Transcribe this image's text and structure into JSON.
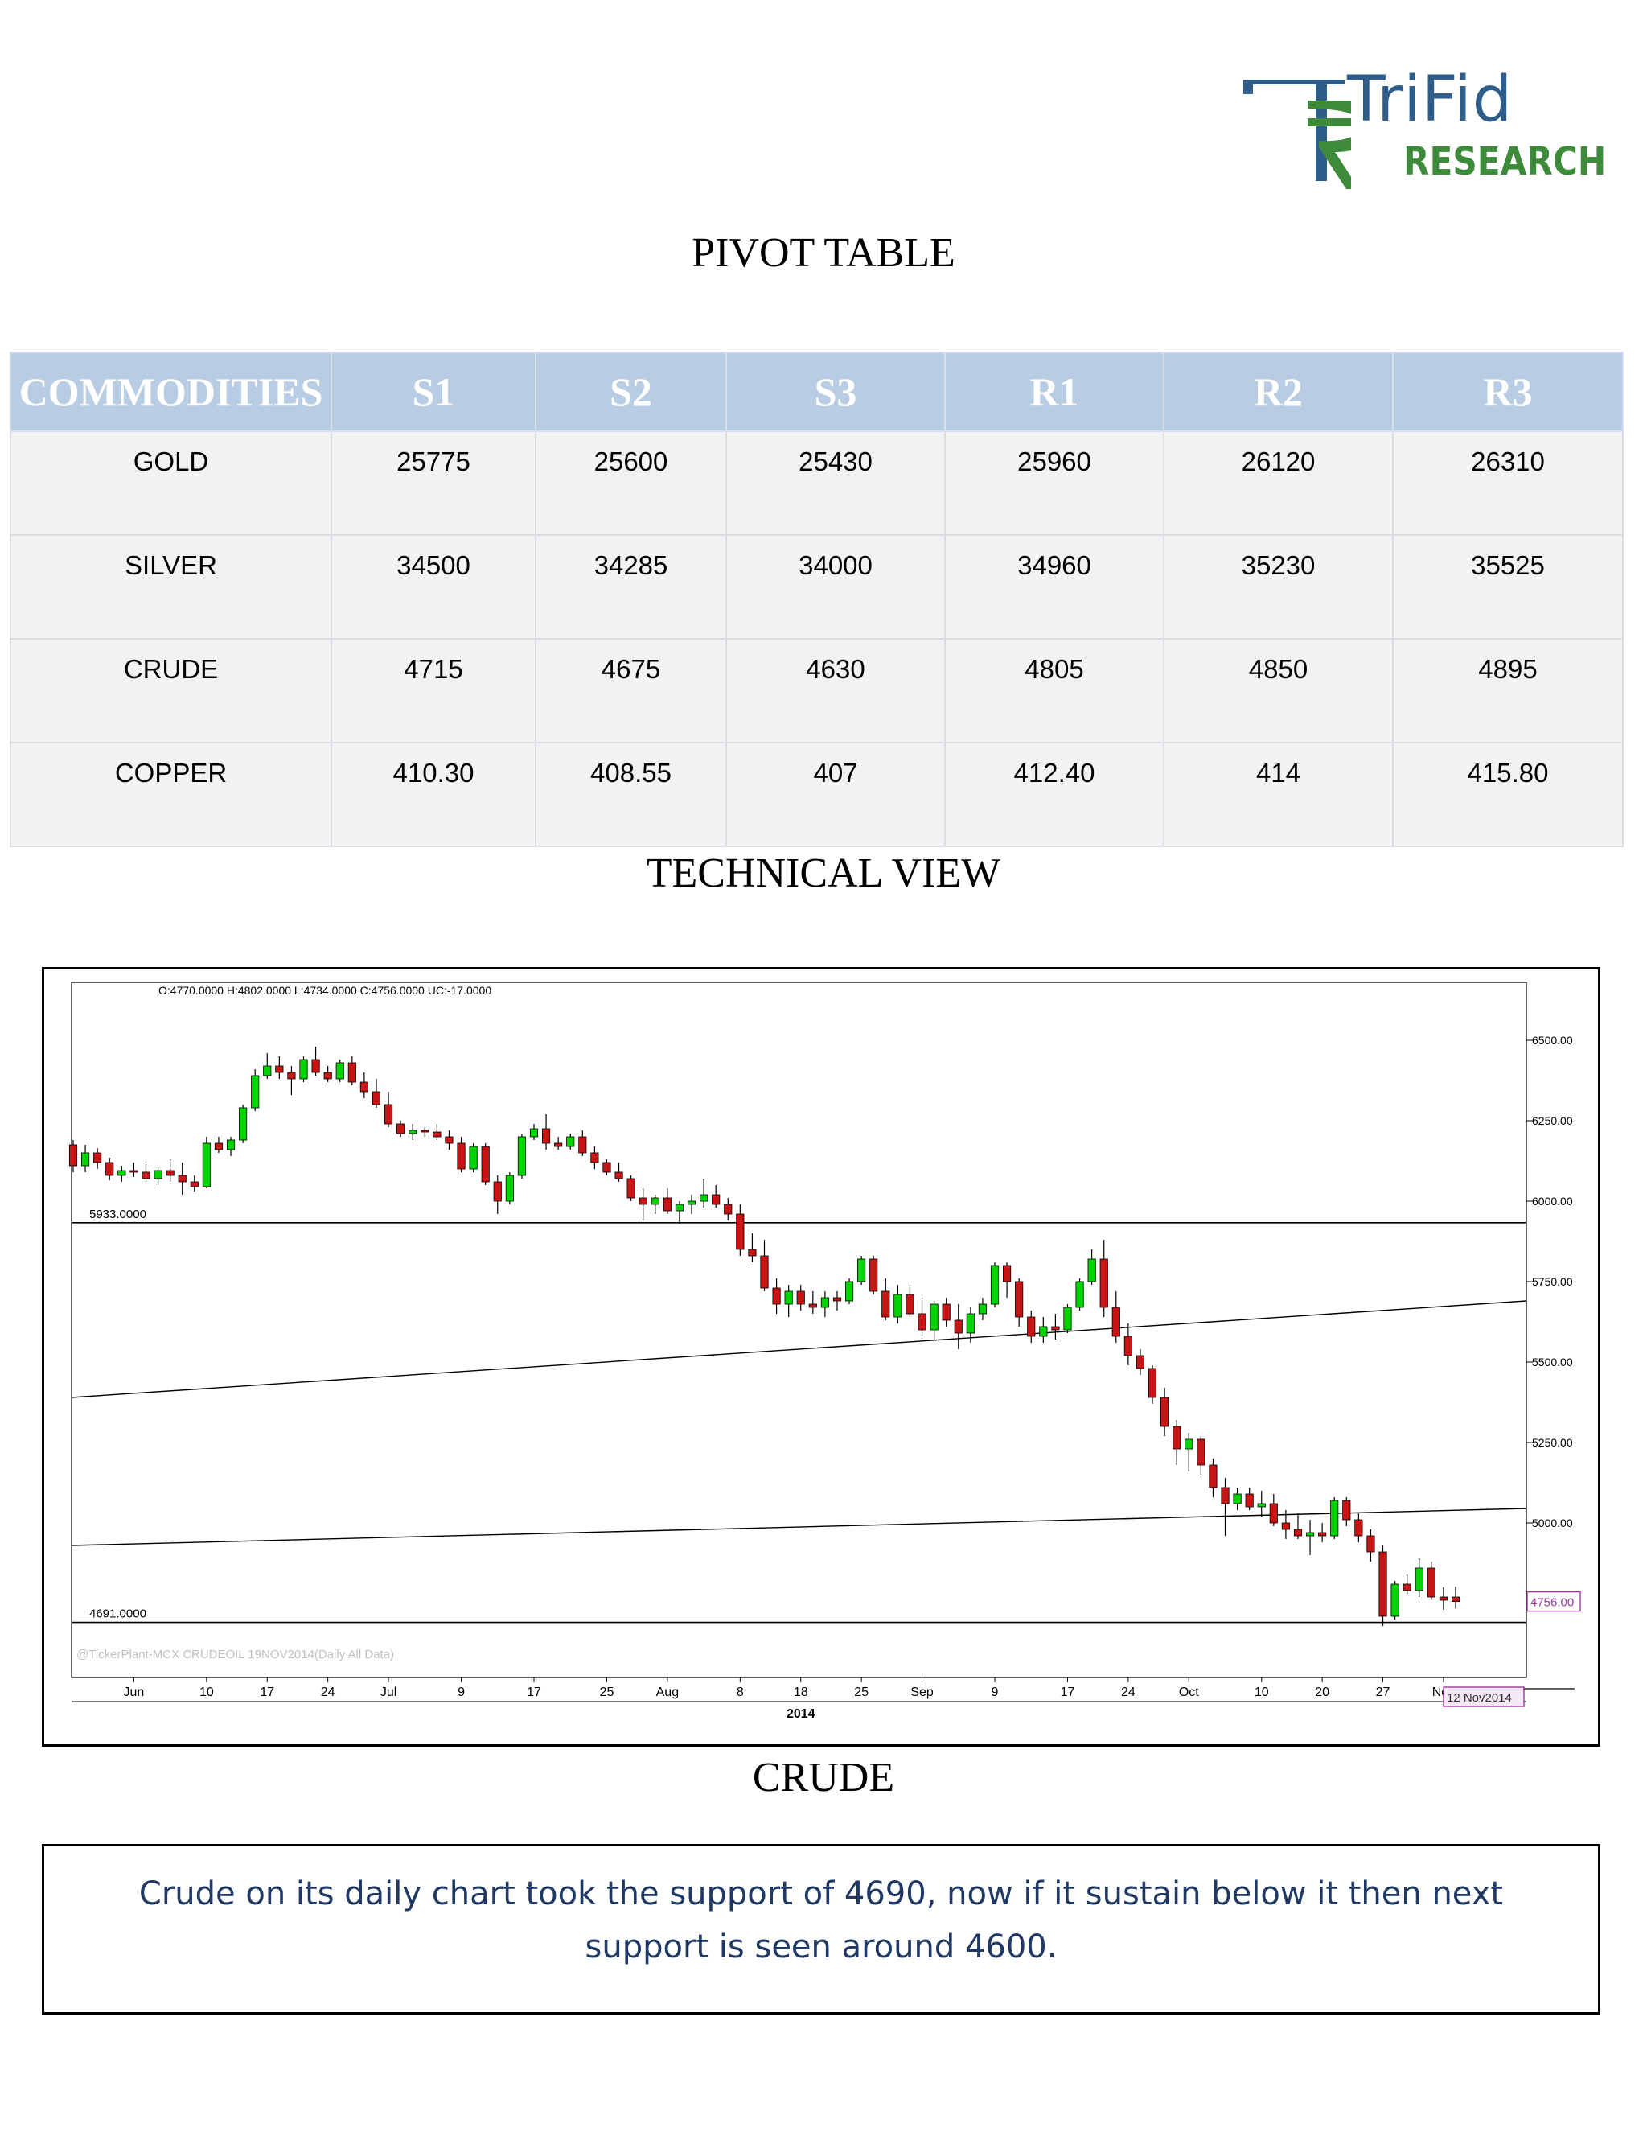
{
  "logo": {
    "name": "TriFid",
    "tagline": "RESEARCH",
    "colors": {
      "blue": "#2f5d8a",
      "green": "#3c8a3a"
    }
  },
  "pivot_title": "PIVOT TABLE",
  "pivot_table": {
    "headers": [
      "COMMODITIES",
      "S1",
      "S2",
      "S3",
      "R1",
      "R2",
      "R3"
    ],
    "rows": [
      [
        "GOLD",
        "25775",
        "25600",
        "25430",
        "25960",
        "26120",
        "26310"
      ],
      [
        "SILVER",
        "34500",
        "34285",
        "34000",
        "34960",
        "35230",
        "35525"
      ],
      [
        "CRUDE",
        "4715",
        "4675",
        "4630",
        "4805",
        "4850",
        "4895"
      ],
      [
        "COPPER",
        "410.30",
        "408.55",
        "407",
        "412.40",
        "414",
        "415.80"
      ]
    ]
  },
  "technical_title": "TECHNICAL VIEW",
  "chart_data": {
    "type": "candlestick",
    "ohlc_readout": "O:4770.0000  H:4802.0000  L:4734.0000  C:4756.0000  UC:-17.0000",
    "watermark": "@TickerPlant-MCX CRUDEOIL 19NOV2014(Daily All Data)",
    "y_ticks": [
      "6500.00",
      "6250.00",
      "6000.00",
      "5750.00",
      "5500.00",
      "5250.00",
      "5000.00",
      "4750.00"
    ],
    "y_tick_values": [
      6500,
      6250,
      6000,
      5750,
      5500,
      5250,
      5000,
      4750
    ],
    "ylim": [
      4520,
      6680
    ],
    "x_ticks": [
      "Jun",
      "10",
      "17",
      "24",
      "Jul",
      "9",
      "17",
      "25",
      "Aug",
      "8",
      "18",
      "25",
      "Sep",
      "9",
      "17",
      "24",
      "Oct",
      "10",
      "20",
      "27",
      "Nov"
    ],
    "x_tick_index": [
      5,
      11,
      16,
      21,
      26,
      32,
      38,
      44,
      49,
      55,
      60,
      65,
      70,
      76,
      82,
      87,
      92,
      98,
      103,
      108,
      113
    ],
    "year_label": "2014",
    "year_index": 60,
    "date_badge": "12 Nov2014",
    "last_price_badge": "4756.00",
    "last_price": 4756,
    "support_levels": [
      {
        "label": "5933.0000",
        "value": 5933
      },
      {
        "label": "4691.0000",
        "value": 4691
      }
    ],
    "trendlines": [
      {
        "from": [
          0,
          5390
        ],
        "to": [
          128,
          5690
        ]
      },
      {
        "from": [
          0,
          4930
        ],
        "to": [
          128,
          5045
        ]
      }
    ],
    "colors": {
      "up": "#00d400",
      "down": "#c81414",
      "wick": "#000000",
      "badge": "#9c3a9c"
    },
    "candles": [
      [
        6175,
        6190,
        6090,
        6110
      ],
      [
        6110,
        6175,
        6090,
        6150
      ],
      [
        6150,
        6165,
        6100,
        6120
      ],
      [
        6120,
        6135,
        6065,
        6080
      ],
      [
        6080,
        6110,
        6060,
        6095
      ],
      [
        6095,
        6120,
        6075,
        6090
      ],
      [
        6090,
        6115,
        6060,
        6070
      ],
      [
        6070,
        6105,
        6050,
        6095
      ],
      [
        6095,
        6130,
        6060,
        6080
      ],
      [
        6080,
        6120,
        6020,
        6060
      ],
      [
        6060,
        6080,
        6030,
        6045
      ],
      [
        6045,
        6200,
        6040,
        6180
      ],
      [
        6180,
        6200,
        6150,
        6160
      ],
      [
        6160,
        6200,
        6140,
        6190
      ],
      [
        6190,
        6300,
        6180,
        6290
      ],
      [
        6290,
        6410,
        6280,
        6390
      ],
      [
        6390,
        6460,
        6380,
        6420
      ],
      [
        6420,
        6450,
        6380,
        6400
      ],
      [
        6400,
        6420,
        6330,
        6380
      ],
      [
        6380,
        6450,
        6370,
        6440
      ],
      [
        6440,
        6480,
        6390,
        6400
      ],
      [
        6400,
        6420,
        6370,
        6380
      ],
      [
        6380,
        6440,
        6370,
        6430
      ],
      [
        6430,
        6450,
        6360,
        6370
      ],
      [
        6370,
        6400,
        6320,
        6340
      ],
      [
        6340,
        6380,
        6290,
        6300
      ],
      [
        6300,
        6340,
        6230,
        6240
      ],
      [
        6240,
        6250,
        6200,
        6210
      ],
      [
        6210,
        6240,
        6190,
        6220
      ],
      [
        6220,
        6230,
        6200,
        6215
      ],
      [
        6215,
        6240,
        6190,
        6200
      ],
      [
        6200,
        6220,
        6160,
        6180
      ],
      [
        6180,
        6200,
        6090,
        6100
      ],
      [
        6100,
        6180,
        6090,
        6170
      ],
      [
        6170,
        6180,
        6050,
        6060
      ],
      [
        6060,
        6080,
        5960,
        6000
      ],
      [
        6000,
        6090,
        5990,
        6080
      ],
      [
        6080,
        6210,
        6070,
        6200
      ],
      [
        6200,
        6240,
        6190,
        6225
      ],
      [
        6225,
        6270,
        6160,
        6180
      ],
      [
        6180,
        6200,
        6160,
        6170
      ],
      [
        6170,
        6210,
        6160,
        6200
      ],
      [
        6200,
        6220,
        6140,
        6150
      ],
      [
        6150,
        6170,
        6100,
        6120
      ],
      [
        6120,
        6130,
        6080,
        6090
      ],
      [
        6090,
        6120,
        6060,
        6070
      ],
      [
        6070,
        6080,
        6000,
        6010
      ],
      [
        6010,
        6040,
        5940,
        5990
      ],
      [
        5990,
        6020,
        5960,
        6010
      ],
      [
        6010,
        6040,
        5960,
        5970
      ],
      [
        5970,
        6000,
        5930,
        5990
      ],
      [
        5990,
        6020,
        5960,
        6000
      ],
      [
        6000,
        6070,
        5980,
        6020
      ],
      [
        6020,
        6050,
        5980,
        5990
      ],
      [
        5990,
        6010,
        5940,
        5960
      ],
      [
        5960,
        5990,
        5830,
        5850
      ],
      [
        5850,
        5900,
        5810,
        5830
      ],
      [
        5830,
        5880,
        5720,
        5730
      ],
      [
        5730,
        5760,
        5650,
        5680
      ],
      [
        5680,
        5740,
        5640,
        5720
      ],
      [
        5720,
        5740,
        5660,
        5680
      ],
      [
        5680,
        5720,
        5650,
        5670
      ],
      [
        5670,
        5720,
        5640,
        5700
      ],
      [
        5700,
        5720,
        5660,
        5690
      ],
      [
        5690,
        5760,
        5680,
        5750
      ],
      [
        5750,
        5830,
        5740,
        5820
      ],
      [
        5820,
        5830,
        5710,
        5720
      ],
      [
        5720,
        5760,
        5630,
        5640
      ],
      [
        5640,
        5740,
        5620,
        5710
      ],
      [
        5710,
        5740,
        5640,
        5650
      ],
      [
        5650,
        5700,
        5580,
        5600
      ],
      [
        5600,
        5690,
        5570,
        5680
      ],
      [
        5680,
        5700,
        5610,
        5630
      ],
      [
        5630,
        5680,
        5540,
        5590
      ],
      [
        5590,
        5670,
        5560,
        5650
      ],
      [
        5650,
        5700,
        5630,
        5680
      ],
      [
        5680,
        5810,
        5670,
        5800
      ],
      [
        5800,
        5810,
        5700,
        5750
      ],
      [
        5750,
        5760,
        5610,
        5640
      ],
      [
        5640,
        5660,
        5560,
        5580
      ],
      [
        5580,
        5640,
        5560,
        5610
      ],
      [
        5610,
        5650,
        5570,
        5600
      ],
      [
        5600,
        5680,
        5590,
        5670
      ],
      [
        5670,
        5760,
        5660,
        5750
      ],
      [
        5750,
        5850,
        5740,
        5820
      ],
      [
        5820,
        5880,
        5640,
        5670
      ],
      [
        5670,
        5720,
        5560,
        5580
      ],
      [
        5580,
        5620,
        5490,
        5520
      ],
      [
        5520,
        5540,
        5460,
        5480
      ],
      [
        5480,
        5490,
        5370,
        5390
      ],
      [
        5390,
        5420,
        5270,
        5300
      ],
      [
        5300,
        5320,
        5180,
        5230
      ],
      [
        5230,
        5280,
        5160,
        5260
      ],
      [
        5260,
        5270,
        5150,
        5180
      ],
      [
        5180,
        5200,
        5080,
        5110
      ],
      [
        5110,
        5140,
        4960,
        5060
      ],
      [
        5060,
        5110,
        5040,
        5090
      ],
      [
        5090,
        5110,
        5040,
        5050
      ],
      [
        5050,
        5100,
        5020,
        5060
      ],
      [
        5060,
        5090,
        4990,
        5000
      ],
      [
        5000,
        5040,
        4950,
        4980
      ],
      [
        4980,
        5030,
        4950,
        4960
      ],
      [
        4960,
        5010,
        4900,
        4970
      ],
      [
        4970,
        5000,
        4940,
        4960
      ],
      [
        4960,
        5080,
        4950,
        5070
      ],
      [
        5070,
        5080,
        4990,
        5010
      ],
      [
        5010,
        5030,
        4940,
        4960
      ],
      [
        4960,
        4980,
        4880,
        4910
      ],
      [
        4910,
        4930,
        4680,
        4710
      ],
      [
        4710,
        4820,
        4700,
        4810
      ],
      [
        4810,
        4840,
        4780,
        4790
      ],
      [
        4790,
        4890,
        4770,
        4860
      ],
      [
        4860,
        4880,
        4760,
        4770
      ],
      [
        4770,
        4800,
        4730,
        4760
      ],
      [
        4770,
        4802,
        4734,
        4756
      ]
    ]
  },
  "chart_caption": "CRUDE",
  "comment": "Crude on its daily chart took the support of 4690, now if it sustain below it then next support is seen around 4600."
}
